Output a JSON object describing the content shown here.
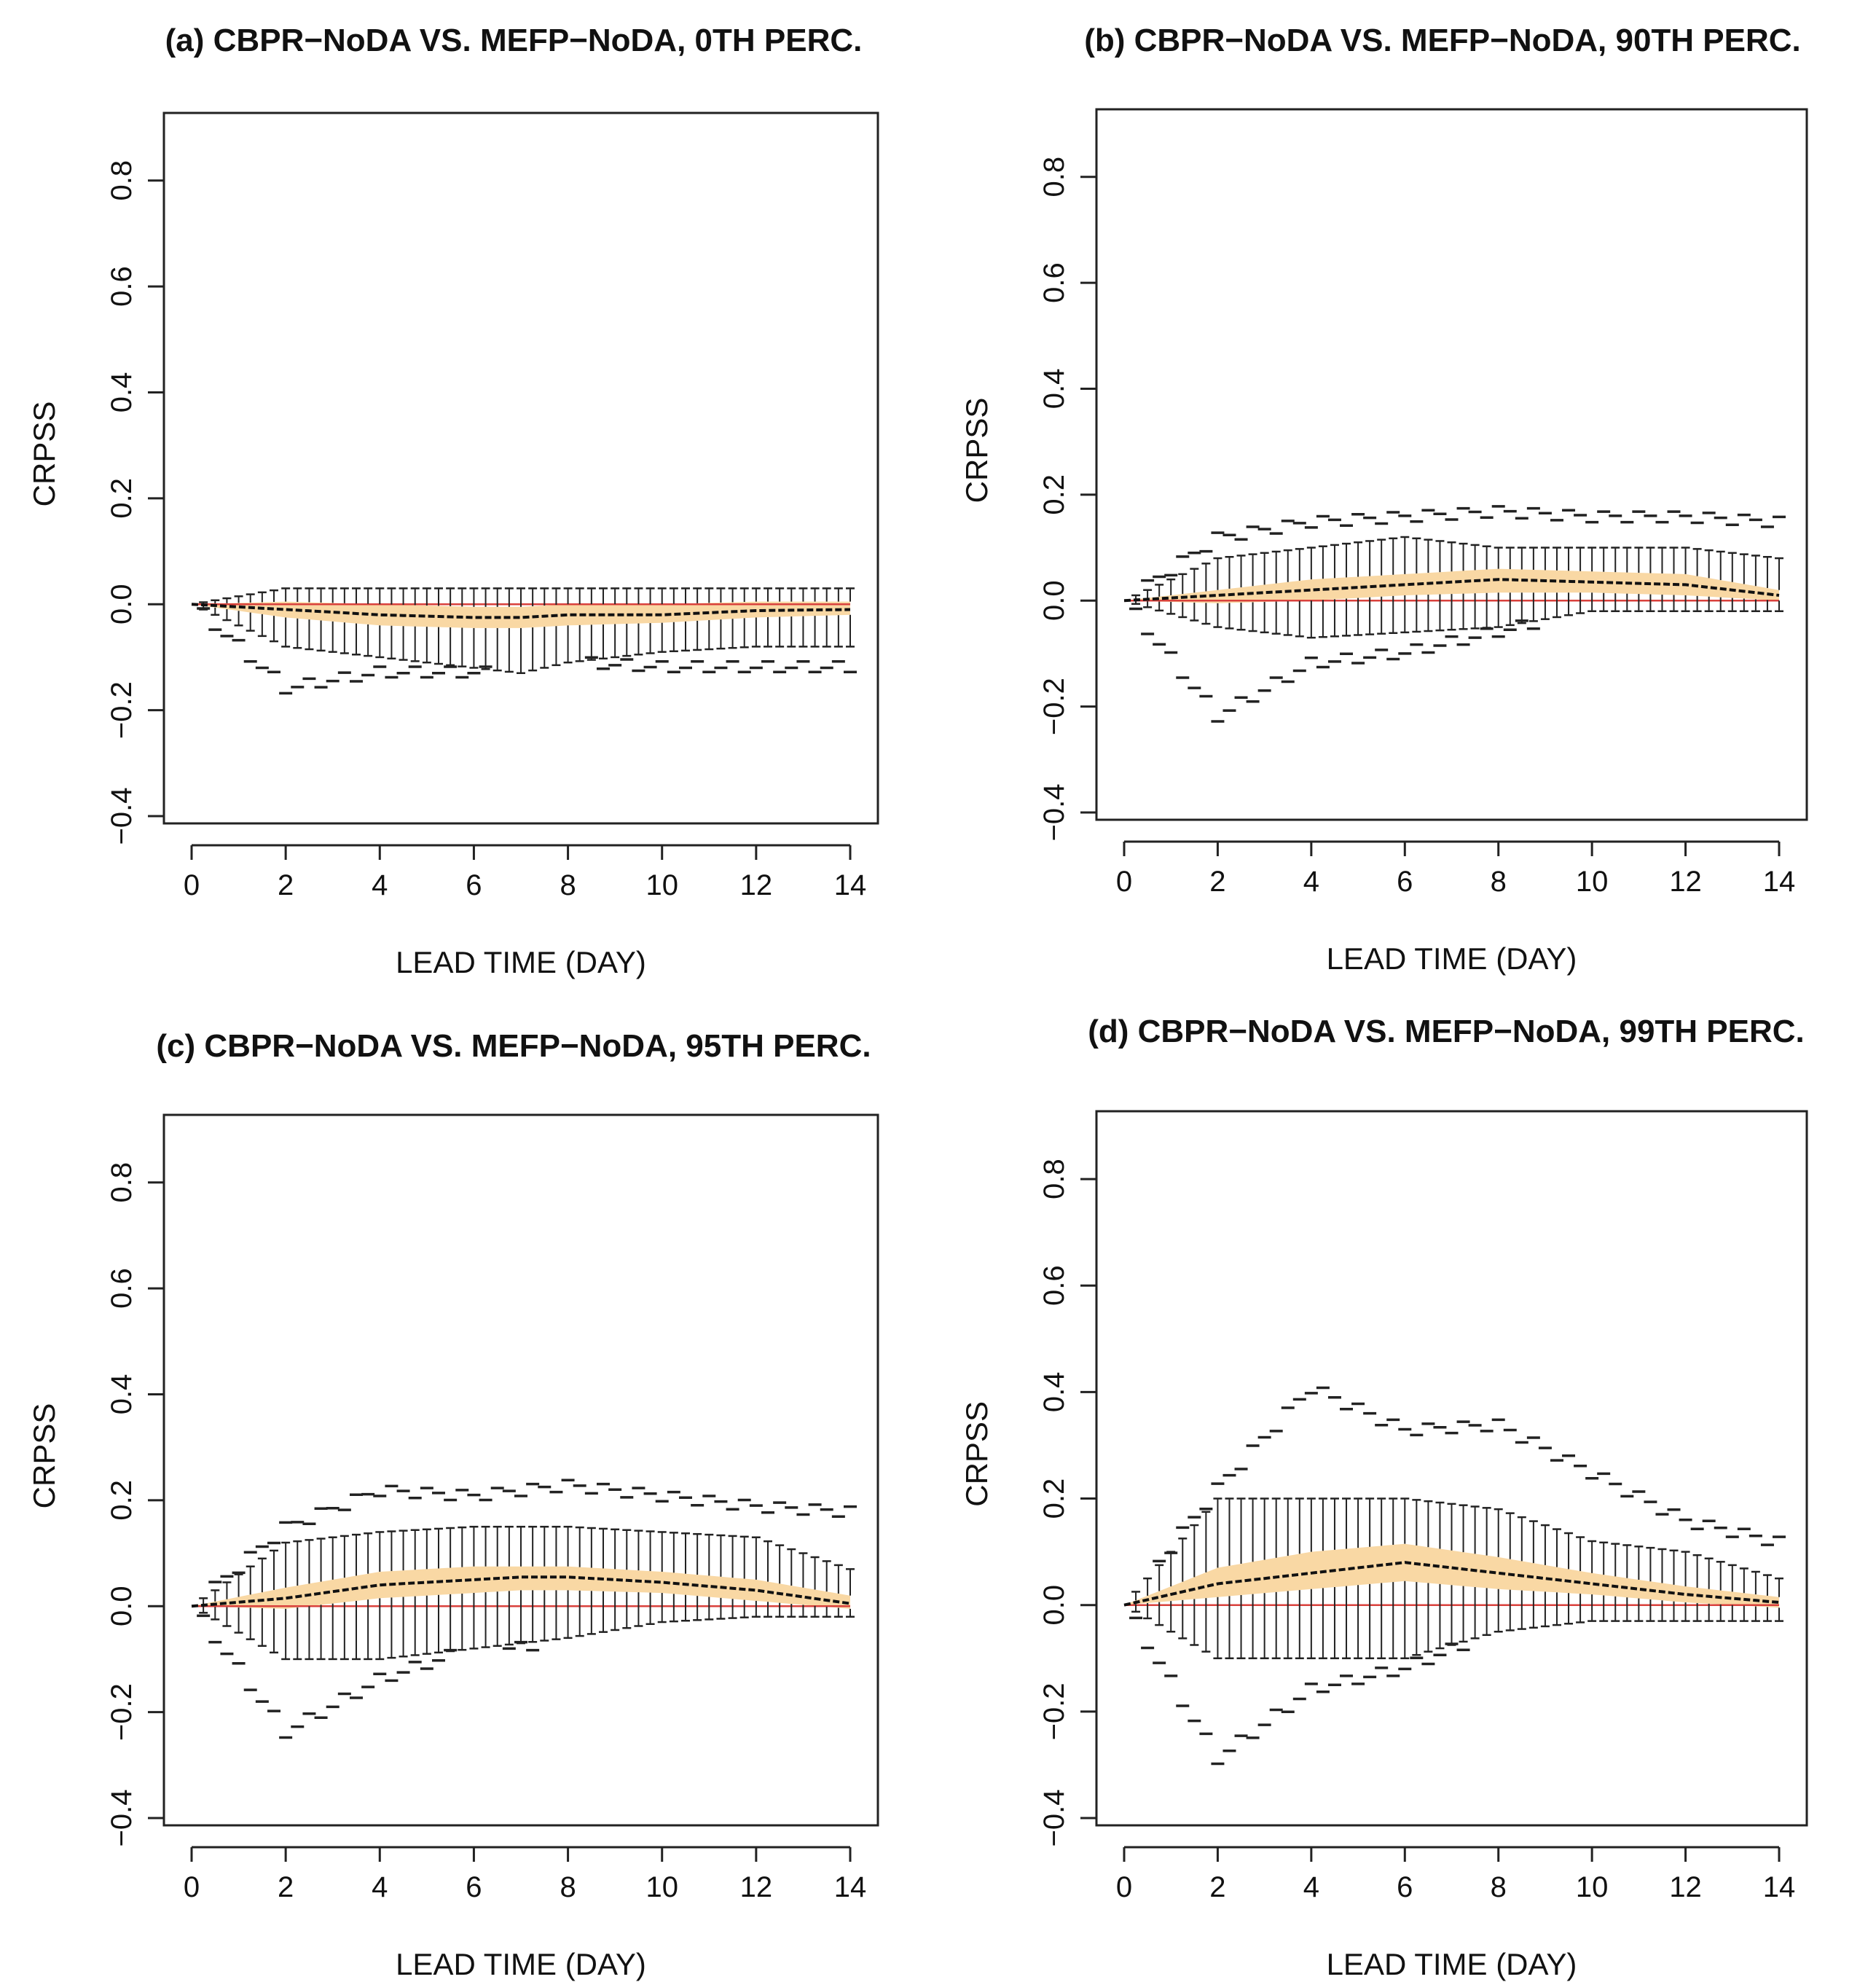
{
  "figure": {
    "panels_layout": "2x2"
  },
  "chart_data": [
    {
      "id": "a",
      "type": "boxplot",
      "title": "(a) CBPR−NoDA VS. MEFP−NoDA, 0TH PERC.",
      "xlabel": "LEAD TIME (DAY)",
      "ylabel": "CRPSS",
      "xlim": [
        0,
        14
      ],
      "ylim": [
        -0.4,
        0.9
      ],
      "xticks": [
        "0",
        "2",
        "4",
        "6",
        "8",
        "10",
        "12",
        "14"
      ],
      "yticks": [
        "−0.4",
        "−0.2",
        "0.0",
        "0.2",
        "0.4",
        "0.6",
        "0.8"
      ],
      "reference_line": 0,
      "x": [
        0,
        2,
        4,
        6,
        7,
        8,
        10,
        12,
        14
      ],
      "median": [
        0,
        -0.01,
        -0.02,
        -0.025,
        -0.025,
        -0.02,
        -0.02,
        -0.012,
        -0.01
      ],
      "q1": [
        0,
        -0.025,
        -0.04,
        -0.045,
        -0.045,
        -0.04,
        -0.035,
        -0.025,
        -0.02
      ],
      "q3": [
        0,
        0.005,
        0.0,
        -0.005,
        -0.005,
        0.0,
        0.0,
        0.005,
        0.005
      ],
      "whisker_low": [
        0,
        -0.08,
        -0.1,
        -0.12,
        -0.13,
        -0.11,
        -0.09,
        -0.08,
        -0.08
      ],
      "whisker_high": [
        0,
        0.03,
        0.03,
        0.03,
        0.03,
        0.03,
        0.03,
        0.03,
        0.03
      ],
      "outlier_low": [
        0,
        -0.16,
        -0.13,
        -0.13,
        -0.13,
        -0.11,
        -0.12,
        -0.12,
        -0.12
      ],
      "outlier_high": [
        0,
        0.0,
        0.0,
        0.0,
        0.0,
        0.0,
        0.0,
        0.03,
        0.03
      ]
    },
    {
      "id": "b",
      "type": "boxplot",
      "title": "(b) CBPR−NoDA VS. MEFP−NoDA, 90TH PERC.",
      "xlabel": "LEAD TIME (DAY)",
      "ylabel": "CRPSS",
      "xlim": [
        0,
        14
      ],
      "ylim": [
        -0.4,
        0.9
      ],
      "xticks": [
        "0",
        "2",
        "4",
        "6",
        "8",
        "10",
        "12",
        "14"
      ],
      "yticks": [
        "−0.4",
        "−0.2",
        "0.0",
        "0.2",
        "0.4",
        "0.6",
        "0.8"
      ],
      "reference_line": 0,
      "x": [
        0,
        2,
        4,
        6,
        8,
        10,
        12,
        14
      ],
      "median": [
        0,
        0.01,
        0.02,
        0.03,
        0.04,
        0.035,
        0.03,
        0.01
      ],
      "q1": [
        0,
        -0.005,
        0.0,
        0.01,
        0.015,
        0.015,
        0.01,
        0.0
      ],
      "q3": [
        0,
        0.02,
        0.04,
        0.05,
        0.06,
        0.055,
        0.05,
        0.02
      ],
      "whisker_low": [
        0,
        -0.05,
        -0.07,
        -0.06,
        -0.05,
        -0.02,
        -0.02,
        -0.02
      ],
      "whisker_high": [
        0,
        0.08,
        0.1,
        0.12,
        0.1,
        0.1,
        0.1,
        0.08
      ],
      "outlier_low": [
        0,
        -0.22,
        -0.12,
        -0.1,
        -0.06,
        -0.02,
        -0.02,
        -0.02
      ],
      "outlier_high": [
        0,
        0.12,
        0.15,
        0.16,
        0.17,
        0.16,
        0.16,
        0.15
      ]
    },
    {
      "id": "c",
      "type": "boxplot",
      "title": "(c) CBPR−NoDA VS. MEFP−NoDA, 95TH PERC.",
      "xlabel": "LEAD TIME (DAY)",
      "ylabel": "CRPSS",
      "xlim": [
        0,
        14
      ],
      "ylim": [
        -0.4,
        0.9
      ],
      "xticks": [
        "0",
        "2",
        "4",
        "6",
        "8",
        "10",
        "12",
        "14"
      ],
      "yticks": [
        "−0.4",
        "−0.2",
        "0.0",
        "0.2",
        "0.4",
        "0.6",
        "0.8"
      ],
      "reference_line": 0,
      "x": [
        0,
        2,
        4,
        6,
        7,
        8,
        10,
        12,
        14
      ],
      "median": [
        0,
        0.015,
        0.04,
        0.05,
        0.055,
        0.055,
        0.045,
        0.03,
        0.005
      ],
      "q1": [
        0,
        -0.005,
        0.015,
        0.025,
        0.03,
        0.03,
        0.025,
        0.01,
        -0.005
      ],
      "q3": [
        0,
        0.035,
        0.065,
        0.075,
        0.075,
        0.075,
        0.065,
        0.05,
        0.02
      ],
      "whisker_low": [
        0,
        -0.1,
        -0.1,
        -0.08,
        -0.07,
        -0.06,
        -0.03,
        -0.02,
        -0.02
      ],
      "whisker_high": [
        0,
        0.12,
        0.14,
        0.15,
        0.15,
        0.15,
        0.14,
        0.13,
        0.07
      ],
      "outlier_low": [
        0,
        -0.24,
        -0.14,
        -0.08,
        -0.08,
        -0.06,
        -0.03,
        -0.02,
        -0.02
      ],
      "outlier_high": [
        0,
        0.15,
        0.22,
        0.21,
        0.22,
        0.23,
        0.21,
        0.19,
        0.18
      ]
    },
    {
      "id": "d",
      "type": "boxplot",
      "title": "(d) CBPR−NoDA VS. MEFP−NoDA, 99TH PERC.",
      "xlabel": "LEAD TIME (DAY)",
      "ylabel": "CRPSS",
      "xlim": [
        0,
        14
      ],
      "ylim": [
        -0.4,
        0.9
      ],
      "xticks": [
        "0",
        "2",
        "4",
        "6",
        "8",
        "10",
        "12",
        "14"
      ],
      "yticks": [
        "−0.4",
        "−0.2",
        "0.0",
        "0.2",
        "0.4",
        "0.6",
        "0.8"
      ],
      "reference_line": 0,
      "x": [
        0,
        2,
        4,
        6,
        8,
        10,
        12,
        14
      ],
      "median": [
        0,
        0.04,
        0.06,
        0.08,
        0.06,
        0.04,
        0.02,
        0.005
      ],
      "q1": [
        0,
        0.015,
        0.03,
        0.045,
        0.03,
        0.02,
        0.005,
        -0.005
      ],
      "q3": [
        0,
        0.07,
        0.1,
        0.115,
        0.09,
        0.06,
        0.035,
        0.015
      ],
      "whisker_low": [
        0,
        -0.1,
        -0.1,
        -0.1,
        -0.05,
        -0.03,
        -0.03,
        -0.03
      ],
      "whisker_high": [
        0,
        0.2,
        0.2,
        0.2,
        0.18,
        0.12,
        0.1,
        0.05
      ],
      "outlier_low": [
        0,
        -0.29,
        -0.16,
        -0.12,
        -0.05,
        -0.03,
        -0.03,
        -0.03
      ],
      "outlier_high": [
        0,
        0.22,
        0.41,
        0.33,
        0.34,
        0.25,
        0.16,
        0.12
      ]
    }
  ]
}
